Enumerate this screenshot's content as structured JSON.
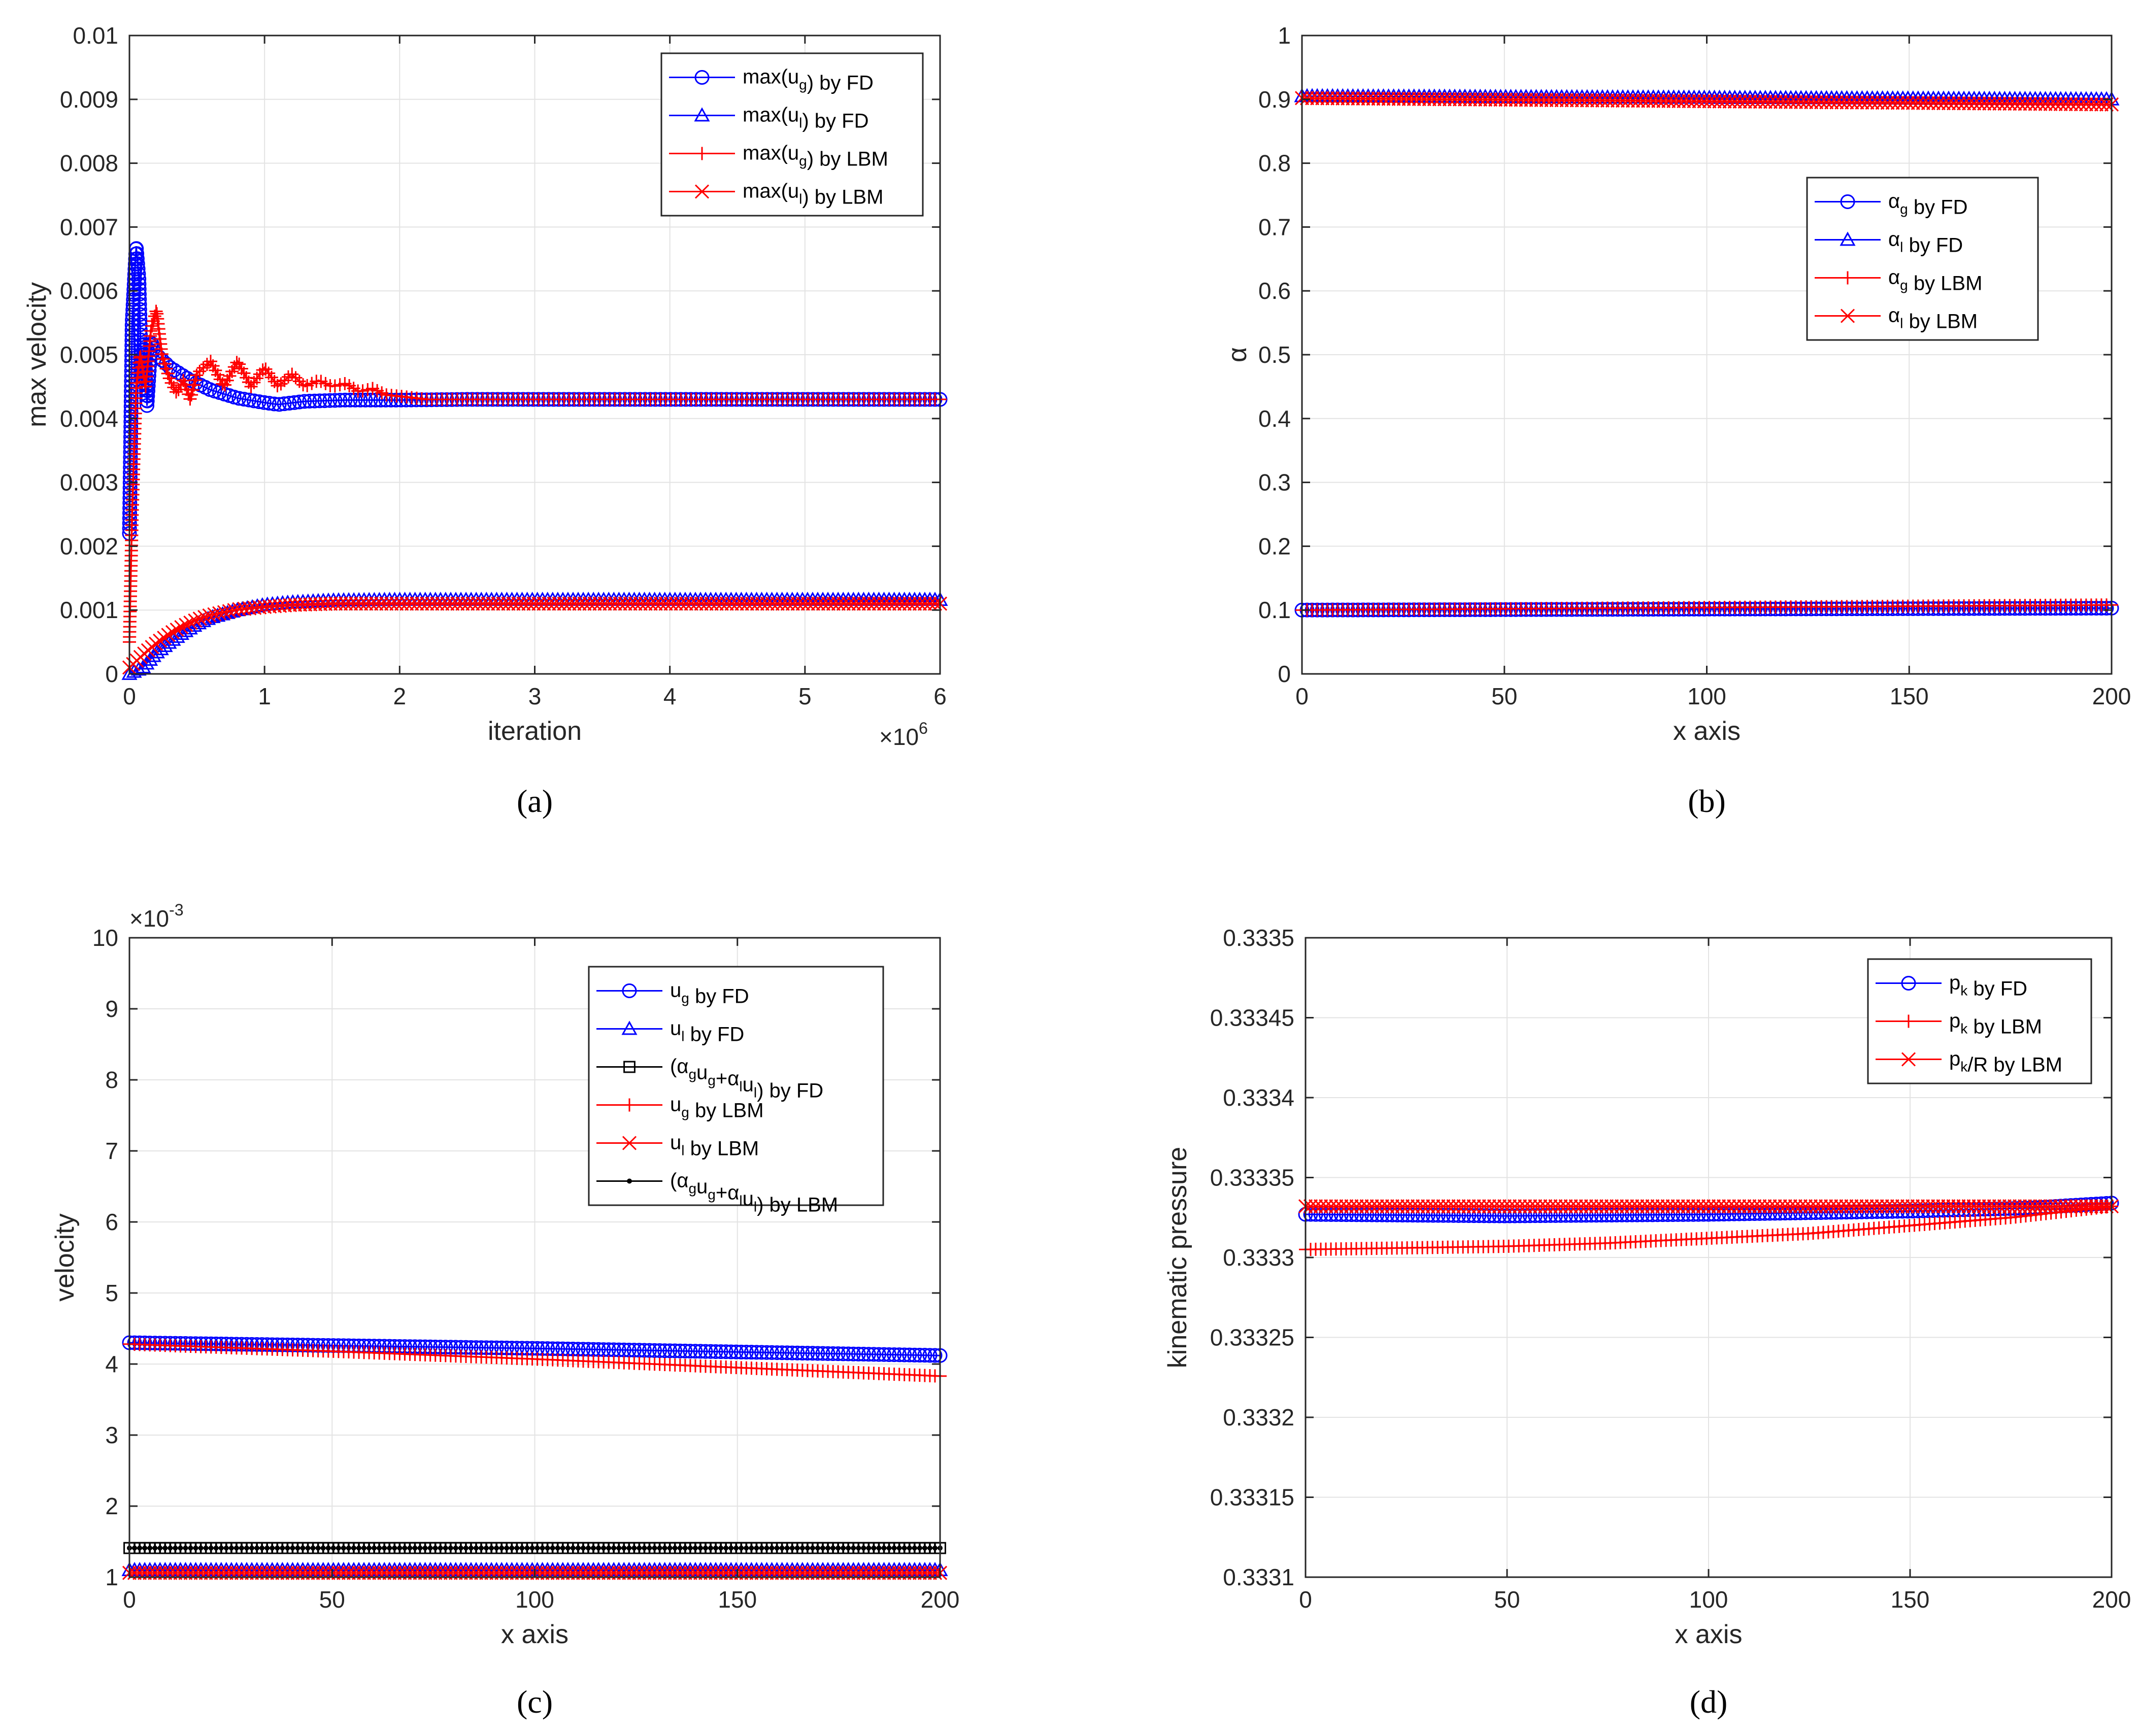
{
  "chart_data": [
    {
      "id": "a",
      "type": "line",
      "caption": "(a)",
      "xlabel": "iteration",
      "ylabel": "max velocity",
      "xlim": [
        0,
        6
      ],
      "ylim": [
        0,
        0.01
      ],
      "x_exponent_label": "×10",
      "x_exponent_power": "6",
      "xticks": [
        0,
        1,
        2,
        3,
        4,
        5,
        6
      ],
      "xtick_labels": [
        "0",
        "1",
        "2",
        "3",
        "4",
        "5",
        "6"
      ],
      "yticks": [
        0,
        0.001,
        0.002,
        0.003,
        0.004,
        0.005,
        0.006,
        0.007,
        0.008,
        0.009,
        0.01
      ],
      "ytick_labels": [
        "0",
        "0.001",
        "0.002",
        "0.003",
        "0.004",
        "0.005",
        "0.006",
        "0.007",
        "0.008",
        "0.009",
        "0.01"
      ],
      "grid": true,
      "legend_position": "top-right",
      "series": [
        {
          "name": "max(u_g) by FD",
          "legend": [
            [
              "max(u",
              ""
            ],
            [
              "g",
              "sub"
            ],
            [
              ") by FD",
              ""
            ]
          ],
          "color": "#0000ff",
          "marker": "o",
          "x": [
            0,
            0.02,
            0.05,
            0.07,
            0.09,
            0.11,
            0.13,
            0.16,
            0.2,
            0.3,
            0.45,
            0.6,
            0.8,
            1.0,
            1.1,
            1.3,
            1.6,
            2.0,
            2.5,
            3,
            4,
            5,
            6
          ],
          "y": [
            0.0022,
            0.0055,
            0.0067,
            0.0062,
            0.0046,
            0.0052,
            0.0042,
            0.0052,
            0.005,
            0.0048,
            0.0046,
            0.00445,
            0.00432,
            0.00425,
            0.00422,
            0.00427,
            0.00429,
            0.00429,
            0.0043,
            0.0043,
            0.0043,
            0.0043,
            0.0043
          ]
        },
        {
          "name": "max(u_l) by FD",
          "legend": [
            [
              "max(u",
              ""
            ],
            [
              "l",
              "sub"
            ],
            [
              ") by FD",
              ""
            ]
          ],
          "color": "#0000ff",
          "marker": "^",
          "x": [
            0,
            0.1,
            0.2,
            0.3,
            0.4,
            0.5,
            0.6,
            0.8,
            1.0,
            1.2,
            1.5,
            2,
            2.5,
            3,
            4,
            5,
            6
          ],
          "y": [
            0,
            0.0001,
            0.00033,
            0.0005,
            0.00065,
            0.00078,
            0.00088,
            0.001,
            0.00108,
            0.00112,
            0.00115,
            0.00116,
            0.00116,
            0.00116,
            0.00116,
            0.00116,
            0.00116
          ]
        },
        {
          "name": "max(u_g) by LBM",
          "legend": [
            [
              "max(u",
              ""
            ],
            [
              "g",
              "sub"
            ],
            [
              ") by LBM",
              ""
            ]
          ],
          "color": "#ff0000",
          "marker": "+",
          "x": [
            0,
            0.02,
            0.05,
            0.08,
            0.12,
            0.16,
            0.2,
            0.24,
            0.3,
            0.35,
            0.4,
            0.45,
            0.5,
            0.6,
            0.7,
            0.8,
            0.9,
            1.0,
            1.1,
            1.2,
            1.3,
            1.4,
            1.5,
            1.6,
            1.7,
            1.8,
            1.9,
            2.0,
            2.2,
            2.5,
            3,
            4,
            5,
            6
          ],
          "y": [
            0.0005,
            0.0025,
            0.0045,
            0.005,
            0.0045,
            0.0054,
            0.0057,
            0.005,
            0.0046,
            0.0044,
            0.0046,
            0.0043,
            0.0047,
            0.0049,
            0.0045,
            0.0049,
            0.0045,
            0.0048,
            0.0045,
            0.0047,
            0.0045,
            0.0046,
            0.0045,
            0.00455,
            0.00442,
            0.00447,
            0.00437,
            0.00435,
            0.0043,
            0.0043,
            0.0043,
            0.0043,
            0.0043,
            0.0043
          ]
        },
        {
          "name": "max(u_l) by LBM",
          "legend": [
            [
              "max(u",
              ""
            ],
            [
              "l",
              "sub"
            ],
            [
              ") by LBM",
              ""
            ]
          ],
          "color": "#ff0000",
          "marker": "x",
          "x": [
            0,
            0.05,
            0.1,
            0.2,
            0.3,
            0.4,
            0.5,
            0.6,
            0.8,
            1.0,
            1.2,
            1.5,
            2,
            2.5,
            3,
            4,
            5,
            6
          ],
          "y": [
            0.0001,
            0.0002,
            0.0003,
            0.00048,
            0.00063,
            0.00075,
            0.00085,
            0.00092,
            0.00101,
            0.00105,
            0.00108,
            0.0011,
            0.0011,
            0.0011,
            0.0011,
            0.0011,
            0.0011,
            0.0011
          ]
        }
      ]
    },
    {
      "id": "b",
      "type": "line",
      "caption": "(b)",
      "xlabel": "x axis",
      "ylabel": "α",
      "xlim": [
        0,
        200
      ],
      "ylim": [
        0,
        1
      ],
      "xticks": [
        0,
        50,
        100,
        150,
        200
      ],
      "xtick_labels": [
        "0",
        "50",
        "100",
        "150",
        "200"
      ],
      "yticks": [
        0,
        0.1,
        0.2,
        0.3,
        0.4,
        0.5,
        0.6,
        0.7,
        0.8,
        0.9,
        1
      ],
      "ytick_labels": [
        "0",
        "0.1",
        "0.2",
        "0.3",
        "0.4",
        "0.5",
        "0.6",
        "0.7",
        "0.8",
        "0.9",
        "1"
      ],
      "grid": true,
      "legend_position": "upper-right-middle",
      "series": [
        {
          "name": "α_g by FD",
          "legend": [
            [
              "α",
              ""
            ],
            [
              "g",
              "sub"
            ],
            [
              " by FD",
              ""
            ]
          ],
          "color": "#0000ff",
          "marker": "o",
          "x": [
            0,
            200
          ],
          "y": [
            0.1,
            0.103
          ]
        },
        {
          "name": "α_l by FD",
          "legend": [
            [
              "α",
              ""
            ],
            [
              "l",
              "sub"
            ],
            [
              " by FD",
              ""
            ]
          ],
          "color": "#0000ff",
          "marker": "^",
          "x": [
            0,
            200
          ],
          "y": [
            0.905,
            0.9
          ]
        },
        {
          "name": "α_g by LBM",
          "legend": [
            [
              "α",
              ""
            ],
            [
              "g",
              "sub"
            ],
            [
              " by LBM",
              ""
            ]
          ],
          "color": "#ff0000",
          "marker": "+",
          "x": [
            0,
            200
          ],
          "y": [
            0.1,
            0.108
          ]
        },
        {
          "name": "α_l by LBM",
          "legend": [
            [
              "α",
              ""
            ],
            [
              "l",
              "sub"
            ],
            [
              " by LBM",
              ""
            ]
          ],
          "color": "#ff0000",
          "marker": "x",
          "x": [
            0,
            200
          ],
          "y": [
            0.902,
            0.892
          ]
        }
      ]
    },
    {
      "id": "c",
      "type": "line",
      "caption": "(c)",
      "xlabel": "x axis",
      "ylabel": "velocity",
      "xlim": [
        0,
        200
      ],
      "ylim": [
        1,
        10
      ],
      "y_exponent_label": "×10",
      "y_exponent_power": "-3",
      "xticks": [
        0,
        50,
        100,
        150,
        200
      ],
      "xtick_labels": [
        "0",
        "50",
        "100",
        "150",
        "200"
      ],
      "yticks": [
        1,
        2,
        3,
        4,
        5,
        6,
        7,
        8,
        9,
        10
      ],
      "ytick_labels": [
        "1",
        "2",
        "3",
        "4",
        "5",
        "6",
        "7",
        "8",
        "9",
        "10"
      ],
      "grid": true,
      "legend_position": "top-right",
      "series": [
        {
          "name": "u_g by FD",
          "legend": [
            [
              "u",
              ""
            ],
            [
              "g",
              "sub"
            ],
            [
              " by FD",
              ""
            ]
          ],
          "color": "#0000ff",
          "marker": "o",
          "x": [
            0,
            100,
            200
          ],
          "y": [
            4.3,
            4.22,
            4.12
          ]
        },
        {
          "name": "u_l by FD",
          "legend": [
            [
              "u",
              ""
            ],
            [
              "l",
              "sub"
            ],
            [
              " by FD",
              ""
            ]
          ],
          "color": "#0000ff",
          "marker": "^",
          "x": [
            0,
            200
          ],
          "y": [
            1.1,
            1.1
          ]
        },
        {
          "name": "(α_g u_g+α_l u_l) by FD",
          "legend": [
            [
              "(α",
              ""
            ],
            [
              "g",
              "sub"
            ],
            [
              "u",
              ""
            ],
            [
              "g",
              "sub"
            ],
            [
              "+α",
              ""
            ],
            [
              "l",
              "sub"
            ],
            [
              "u",
              ""
            ],
            [
              "l",
              "sub"
            ],
            [
              ") by FD",
              ""
            ]
          ],
          "color": "#000000",
          "marker": "s",
          "x": [
            0,
            200
          ],
          "y": [
            1.41,
            1.41
          ]
        },
        {
          "name": "u_g by LBM",
          "legend": [
            [
              "u",
              ""
            ],
            [
              "g",
              "sub"
            ],
            [
              " by LBM",
              ""
            ]
          ],
          "color": "#ff0000",
          "marker": "+",
          "x": [
            0,
            50,
            100,
            150,
            200
          ],
          "y": [
            4.28,
            4.18,
            4.07,
            3.95,
            3.83
          ]
        },
        {
          "name": "u_l by LBM",
          "legend": [
            [
              "u",
              ""
            ],
            [
              "l",
              "sub"
            ],
            [
              " by LBM",
              ""
            ]
          ],
          "color": "#ff0000",
          "marker": "x",
          "x": [
            0,
            200
          ],
          "y": [
            1.06,
            1.06
          ]
        },
        {
          "name": "(α_g u_g+α_l u_l) by LBM",
          "legend": [
            [
              "(α",
              ""
            ],
            [
              "g",
              "sub"
            ],
            [
              "u",
              ""
            ],
            [
              "g",
              "sub"
            ],
            [
              "+α",
              ""
            ],
            [
              "l",
              "sub"
            ],
            [
              "u",
              ""
            ],
            [
              "l",
              "sub"
            ],
            [
              ") by LBM",
              ""
            ]
          ],
          "color": "#000000",
          "marker": ".",
          "x": [
            0,
            200
          ],
          "y": [
            1.41,
            1.41
          ]
        }
      ]
    },
    {
      "id": "d",
      "type": "line",
      "caption": "(d)",
      "xlabel": "x axis",
      "ylabel": "kinematic pressure",
      "xlim": [
        0,
        200
      ],
      "ylim": [
        0.3331,
        0.3335
      ],
      "xticks": [
        0,
        50,
        100,
        150,
        200
      ],
      "xtick_labels": [
        "0",
        "50",
        "100",
        "150",
        "200"
      ],
      "yticks": [
        0.3331,
        0.33315,
        0.3332,
        0.33325,
        0.3333,
        0.33335,
        0.3334,
        0.33345,
        0.3335
      ],
      "ytick_labels": [
        "0.3331",
        "0.33315",
        "0.3332",
        "0.33325",
        "0.3333",
        "0.33335",
        "0.3334",
        "0.33345",
        "0.3335"
      ],
      "grid": true,
      "legend_position": "top-right",
      "series": [
        {
          "name": "p_k by FD",
          "legend": [
            [
              "p",
              ""
            ],
            [
              "k",
              "sub"
            ],
            [
              " by FD",
              ""
            ]
          ],
          "color": "#0000ff",
          "marker": "o",
          "x": [
            0,
            50,
            100,
            150,
            180,
            200
          ],
          "y": [
            0.333327,
            0.333326,
            0.333327,
            0.333329,
            0.333331,
            0.333334
          ]
        },
        {
          "name": "p_k by LBM",
          "legend": [
            [
              "p",
              ""
            ],
            [
              "k",
              "sub"
            ],
            [
              " by LBM",
              ""
            ]
          ],
          "color": "#ff0000",
          "marker": "+",
          "x": [
            0,
            25,
            50,
            75,
            100,
            125,
            150,
            175,
            200
          ],
          "y": [
            0.333305,
            0.333306,
            0.333307,
            0.333309,
            0.333312,
            0.333315,
            0.33332,
            0.333325,
            0.333332
          ]
        },
        {
          "name": "p_k/R by LBM",
          "legend": [
            [
              "p",
              ""
            ],
            [
              "k",
              "sub"
            ],
            [
              "/R by LBM",
              ""
            ]
          ],
          "color": "#ff0000",
          "marker": "x",
          "x": [
            0,
            200
          ],
          "y": [
            0.333332,
            0.333332
          ]
        }
      ]
    }
  ]
}
